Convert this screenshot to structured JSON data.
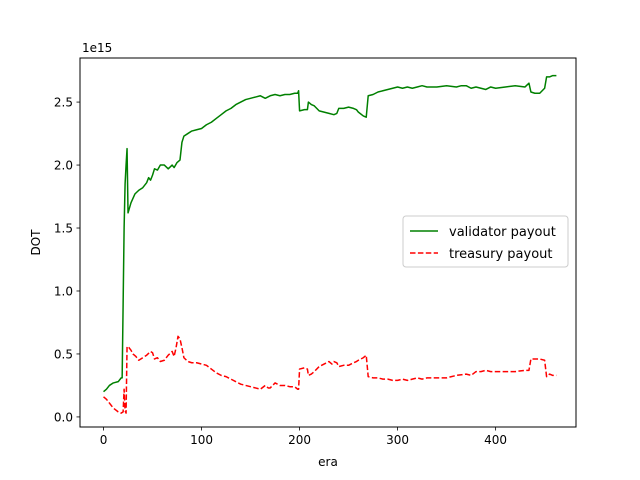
{
  "chart_data": {
    "type": "line",
    "title": "",
    "xlabel": "era",
    "ylabel": "DOT",
    "offset_text": "1e15",
    "xlim": [
      -24,
      482
    ],
    "ylim": [
      -0.08,
      2.85
    ],
    "x_ticks": [
      0,
      100,
      200,
      300,
      400
    ],
    "x_tick_labels": [
      "0",
      "100",
      "200",
      "300",
      "400"
    ],
    "y_ticks": [
      0.0,
      0.5,
      1.0,
      1.5,
      2.0,
      2.5
    ],
    "y_tick_labels": [
      "0.0",
      "0.5",
      "1.0",
      "1.5",
      "2.0",
      "2.5"
    ],
    "grid": false,
    "legend_position": "center-right",
    "series": [
      {
        "name": "validator payout",
        "color": "#008000",
        "style": "solid",
        "points": [
          [
            0,
            0.2
          ],
          [
            3,
            0.22
          ],
          [
            6,
            0.25
          ],
          [
            10,
            0.27
          ],
          [
            15,
            0.28
          ],
          [
            18,
            0.31
          ],
          [
            19,
            0.31
          ],
          [
            20,
            0.9
          ],
          [
            21,
            1.5
          ],
          [
            22,
            1.85
          ],
          [
            23,
            2.0
          ],
          [
            24,
            2.13
          ],
          [
            25,
            1.62
          ],
          [
            28,
            1.7
          ],
          [
            32,
            1.77
          ],
          [
            36,
            1.8
          ],
          [
            40,
            1.82
          ],
          [
            44,
            1.86
          ],
          [
            46,
            1.9
          ],
          [
            48,
            1.88
          ],
          [
            50,
            1.92
          ],
          [
            52,
            1.97
          ],
          [
            55,
            1.96
          ],
          [
            58,
            2.0
          ],
          [
            62,
            2.0
          ],
          [
            66,
            1.97
          ],
          [
            70,
            2.0
          ],
          [
            72,
            1.98
          ],
          [
            75,
            2.02
          ],
          [
            78,
            2.04
          ],
          [
            80,
            2.18
          ],
          [
            82,
            2.23
          ],
          [
            86,
            2.25
          ],
          [
            90,
            2.27
          ],
          [
            95,
            2.28
          ],
          [
            100,
            2.29
          ],
          [
            105,
            2.32
          ],
          [
            110,
            2.34
          ],
          [
            115,
            2.37
          ],
          [
            120,
            2.4
          ],
          [
            125,
            2.43
          ],
          [
            130,
            2.45
          ],
          [
            135,
            2.48
          ],
          [
            140,
            2.5
          ],
          [
            145,
            2.52
          ],
          [
            150,
            2.53
          ],
          [
            155,
            2.54
          ],
          [
            160,
            2.55
          ],
          [
            165,
            2.53
          ],
          [
            170,
            2.55
          ],
          [
            175,
            2.56
          ],
          [
            180,
            2.55
          ],
          [
            185,
            2.56
          ],
          [
            190,
            2.56
          ],
          [
            195,
            2.57
          ],
          [
            198,
            2.57
          ],
          [
            199,
            2.59
          ],
          [
            200,
            2.43
          ],
          [
            205,
            2.44
          ],
          [
            208,
            2.44
          ],
          [
            209,
            2.5
          ],
          [
            212,
            2.48
          ],
          [
            215,
            2.47
          ],
          [
            220,
            2.43
          ],
          [
            225,
            2.42
          ],
          [
            230,
            2.41
          ],
          [
            235,
            2.4
          ],
          [
            238,
            2.41
          ],
          [
            240,
            2.45
          ],
          [
            245,
            2.45
          ],
          [
            250,
            2.46
          ],
          [
            255,
            2.45
          ],
          [
            258,
            2.44
          ],
          [
            260,
            2.42
          ],
          [
            265,
            2.39
          ],
          [
            268,
            2.38
          ],
          [
            270,
            2.55
          ],
          [
            275,
            2.56
          ],
          [
            280,
            2.58
          ],
          [
            285,
            2.59
          ],
          [
            290,
            2.6
          ],
          [
            295,
            2.61
          ],
          [
            300,
            2.62
          ],
          [
            305,
            2.61
          ],
          [
            310,
            2.62
          ],
          [
            315,
            2.61
          ],
          [
            320,
            2.62
          ],
          [
            325,
            2.63
          ],
          [
            330,
            2.62
          ],
          [
            340,
            2.62
          ],
          [
            350,
            2.63
          ],
          [
            360,
            2.62
          ],
          [
            365,
            2.63
          ],
          [
            370,
            2.63
          ],
          [
            375,
            2.61
          ],
          [
            380,
            2.62
          ],
          [
            385,
            2.61
          ],
          [
            390,
            2.6
          ],
          [
            395,
            2.62
          ],
          [
            400,
            2.61
          ],
          [
            410,
            2.62
          ],
          [
            420,
            2.63
          ],
          [
            430,
            2.62
          ],
          [
            434,
            2.65
          ],
          [
            436,
            2.58
          ],
          [
            440,
            2.57
          ],
          [
            445,
            2.57
          ],
          [
            450,
            2.61
          ],
          [
            452,
            2.7
          ],
          [
            455,
            2.7
          ],
          [
            458,
            2.71
          ],
          [
            460,
            2.71
          ],
          [
            462,
            2.71
          ]
        ]
      },
      {
        "name": "treasury payout",
        "color": "#ff0000",
        "style": "dashed",
        "points": [
          [
            0,
            0.16
          ],
          [
            3,
            0.14
          ],
          [
            6,
            0.11
          ],
          [
            10,
            0.07
          ],
          [
            15,
            0.04
          ],
          [
            18,
            0.03
          ],
          [
            20,
            0.04
          ],
          [
            21,
            0.22
          ],
          [
            22,
            0.05
          ],
          [
            23,
            0.03
          ],
          [
            24,
            0.56
          ],
          [
            26,
            0.55
          ],
          [
            28,
            0.53
          ],
          [
            30,
            0.5
          ],
          [
            33,
            0.48
          ],
          [
            36,
            0.45
          ],
          [
            40,
            0.47
          ],
          [
            44,
            0.49
          ],
          [
            48,
            0.52
          ],
          [
            50,
            0.51
          ],
          [
            52,
            0.46
          ],
          [
            55,
            0.47
          ],
          [
            58,
            0.44
          ],
          [
            62,
            0.45
          ],
          [
            66,
            0.49
          ],
          [
            70,
            0.52
          ],
          [
            72,
            0.48
          ],
          [
            74,
            0.55
          ],
          [
            76,
            0.64
          ],
          [
            78,
            0.62
          ],
          [
            80,
            0.55
          ],
          [
            82,
            0.47
          ],
          [
            86,
            0.44
          ],
          [
            90,
            0.43
          ],
          [
            95,
            0.43
          ],
          [
            100,
            0.42
          ],
          [
            105,
            0.41
          ],
          [
            110,
            0.38
          ],
          [
            115,
            0.35
          ],
          [
            120,
            0.33
          ],
          [
            125,
            0.32
          ],
          [
            130,
            0.3
          ],
          [
            135,
            0.28
          ],
          [
            140,
            0.26
          ],
          [
            145,
            0.25
          ],
          [
            150,
            0.24
          ],
          [
            155,
            0.23
          ],
          [
            160,
            0.22
          ],
          [
            165,
            0.25
          ],
          [
            168,
            0.23
          ],
          [
            170,
            0.23
          ],
          [
            175,
            0.27
          ],
          [
            180,
            0.25
          ],
          [
            185,
            0.25
          ],
          [
            190,
            0.24
          ],
          [
            195,
            0.24
          ],
          [
            198,
            0.22
          ],
          [
            199,
            0.22
          ],
          [
            200,
            0.38
          ],
          [
            205,
            0.39
          ],
          [
            208,
            0.38
          ],
          [
            209,
            0.33
          ],
          [
            212,
            0.34
          ],
          [
            215,
            0.36
          ],
          [
            220,
            0.4
          ],
          [
            225,
            0.42
          ],
          [
            230,
            0.44
          ],
          [
            233,
            0.42
          ],
          [
            235,
            0.44
          ],
          [
            238,
            0.43
          ],
          [
            240,
            0.4
          ],
          [
            245,
            0.41
          ],
          [
            250,
            0.41
          ],
          [
            255,
            0.43
          ],
          [
            258,
            0.44
          ],
          [
            260,
            0.45
          ],
          [
            265,
            0.47
          ],
          [
            268,
            0.49
          ],
          [
            270,
            0.32
          ],
          [
            275,
            0.31
          ],
          [
            280,
            0.31
          ],
          [
            285,
            0.3
          ],
          [
            290,
            0.3
          ],
          [
            295,
            0.29
          ],
          [
            300,
            0.29
          ],
          [
            305,
            0.3
          ],
          [
            310,
            0.29
          ],
          [
            315,
            0.3
          ],
          [
            320,
            0.31
          ],
          [
            325,
            0.3
          ],
          [
            330,
            0.31
          ],
          [
            340,
            0.31
          ],
          [
            350,
            0.31
          ],
          [
            360,
            0.33
          ],
          [
            370,
            0.34
          ],
          [
            375,
            0.33
          ],
          [
            380,
            0.36
          ],
          [
            385,
            0.36
          ],
          [
            390,
            0.37
          ],
          [
            395,
            0.36
          ],
          [
            400,
            0.36
          ],
          [
            410,
            0.36
          ],
          [
            420,
            0.36
          ],
          [
            430,
            0.37
          ],
          [
            434,
            0.37
          ],
          [
            436,
            0.46
          ],
          [
            440,
            0.46
          ],
          [
            445,
            0.46
          ],
          [
            450,
            0.45
          ],
          [
            452,
            0.32
          ],
          [
            455,
            0.34
          ],
          [
            458,
            0.33
          ],
          [
            460,
            0.33
          ],
          [
            462,
            0.33
          ]
        ]
      }
    ]
  }
}
